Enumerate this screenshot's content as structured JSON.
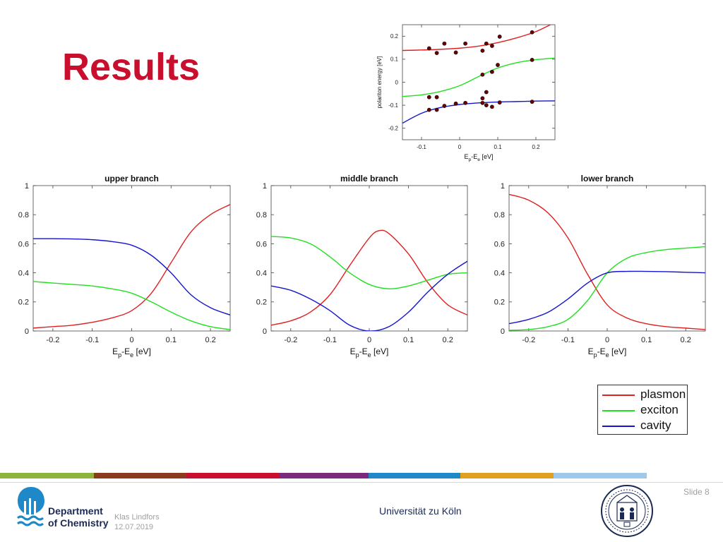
{
  "slide": {
    "title": "Results",
    "slide_number": "Slide 8",
    "author": "Klas Lindfors",
    "date": "12.07.2019",
    "university": "Universität zu Köln",
    "department_line1": "Department",
    "department_line2": "of Chemistry"
  },
  "colors": {
    "title": "#c8102e",
    "plasmon": "#e02020",
    "exciton": "#20e020",
    "cavity": "#1515d0",
    "data_points": "#6b0000",
    "department": "#1a2a55",
    "logo": "#1e88c8",
    "color_bar": [
      "#8db43a",
      "#8b3a1e",
      "#c8102e",
      "#7a2a7a",
      "#1e88c8",
      "#e0a020",
      "#a0c8e8"
    ]
  },
  "legend": {
    "entries": [
      {
        "label": "plasmon",
        "color": "#e02020"
      },
      {
        "label": "exciton",
        "color": "#20e020"
      },
      {
        "label": "cavity",
        "color": "#1515d0"
      }
    ]
  },
  "chart_data": [
    {
      "id": "dispersion",
      "type": "scatter",
      "xlabel_main": "E",
      "xlabel_sub1": "p",
      "xlabel_mid": "-E",
      "xlabel_sub2": "e",
      "xlabel_unit": " [eV]",
      "ylabel": "polariton energy [eV]",
      "xlim": [
        -0.15,
        0.25
      ],
      "ylim": [
        -0.25,
        0.25
      ],
      "x_ticks": [
        -0.1,
        0,
        0.1,
        0.2
      ],
      "x_tick_labels": [
        "-0.1",
        "0",
        "0.1",
        "0.2"
      ],
      "y_ticks": [
        -0.2,
        -0.1,
        0,
        0.1,
        0.2
      ],
      "y_tick_labels": [
        "-0.2",
        "-0.1",
        "0",
        "0.1",
        "0.2"
      ],
      "grid": false,
      "points": [
        {
          "x": -0.08,
          "y": 0.147
        },
        {
          "x": -0.06,
          "y": 0.127
        },
        {
          "x": -0.04,
          "y": 0.168
        },
        {
          "x": -0.01,
          "y": 0.129
        },
        {
          "x": 0.015,
          "y": 0.168
        },
        {
          "x": 0.06,
          "y": 0.137
        },
        {
          "x": 0.07,
          "y": 0.168
        },
        {
          "x": 0.085,
          "y": 0.158
        },
        {
          "x": 0.105,
          "y": 0.198
        },
        {
          "x": 0.19,
          "y": 0.217
        },
        {
          "x": 0.06,
          "y": 0.033
        },
        {
          "x": 0.085,
          "y": 0.045
        },
        {
          "x": 0.1,
          "y": 0.075
        },
        {
          "x": 0.19,
          "y": 0.097
        },
        {
          "x": -0.08,
          "y": -0.065
        },
        {
          "x": -0.06,
          "y": -0.065
        },
        {
          "x": 0.06,
          "y": -0.07
        },
        {
          "x": 0.07,
          "y": -0.043
        },
        {
          "x": -0.08,
          "y": -0.12
        },
        {
          "x": -0.06,
          "y": -0.12
        },
        {
          "x": -0.04,
          "y": -0.103
        },
        {
          "x": -0.01,
          "y": -0.093
        },
        {
          "x": 0.015,
          "y": -0.09
        },
        {
          "x": 0.06,
          "y": -0.09
        },
        {
          "x": 0.07,
          "y": -0.1
        },
        {
          "x": 0.085,
          "y": -0.107
        },
        {
          "x": 0.105,
          "y": -0.088
        },
        {
          "x": 0.19,
          "y": -0.085
        }
      ],
      "series": [
        {
          "color": "#e02020",
          "x": [
            -0.15,
            -0.1,
            -0.05,
            0,
            0.05,
            0.1,
            0.15,
            0.2,
            0.25
          ],
          "y": [
            0.138,
            0.14,
            0.143,
            0.148,
            0.157,
            0.172,
            0.193,
            0.22,
            0.26
          ]
        },
        {
          "color": "#20e020",
          "x": [
            -0.15,
            -0.1,
            -0.05,
            0,
            0.05,
            0.1,
            0.15,
            0.2,
            0.25
          ],
          "y": [
            -0.062,
            -0.055,
            -0.04,
            -0.015,
            0.025,
            0.062,
            0.085,
            0.098,
            0.105
          ]
        },
        {
          "color": "#1515d0",
          "x": [
            -0.15,
            -0.1,
            -0.05,
            0,
            0.05,
            0.1,
            0.15,
            0.2,
            0.25
          ],
          "y": [
            -0.178,
            -0.135,
            -0.11,
            -0.097,
            -0.09,
            -0.086,
            -0.084,
            -0.082,
            -0.081
          ]
        }
      ]
    },
    {
      "id": "upper",
      "type": "line",
      "title": "upper branch",
      "xlabel_main": "E",
      "xlabel_sub1": "p",
      "xlabel_mid": "-E",
      "xlabel_sub2": "e",
      "xlabel_unit": " [eV]",
      "xlim": [
        -0.25,
        0.25
      ],
      "ylim": [
        0,
        1
      ],
      "x_ticks": [
        -0.2,
        -0.1,
        0,
        0.1,
        0.2
      ],
      "x_tick_labels": [
        "-0.2",
        "-0.1",
        "0",
        "0.1",
        "0.2"
      ],
      "y_ticks": [
        0,
        0.2,
        0.4,
        0.6,
        0.8,
        1
      ],
      "y_tick_labels": [
        "0",
        "0.2",
        "0.4",
        "0.6",
        "0.8",
        "1"
      ],
      "grid": false,
      "series": [
        {
          "color": "#e02020",
          "x": [
            -0.25,
            -0.2,
            -0.15,
            -0.1,
            -0.05,
            0,
            0.05,
            0.1,
            0.15,
            0.2,
            0.25
          ],
          "y": [
            0.02,
            0.03,
            0.04,
            0.06,
            0.09,
            0.14,
            0.26,
            0.47,
            0.68,
            0.8,
            0.87
          ]
        },
        {
          "color": "#20e020",
          "x": [
            -0.25,
            -0.2,
            -0.15,
            -0.1,
            -0.05,
            0,
            0.05,
            0.1,
            0.15,
            0.2,
            0.25
          ],
          "y": [
            0.34,
            0.33,
            0.32,
            0.31,
            0.29,
            0.26,
            0.2,
            0.13,
            0.07,
            0.03,
            0.01
          ]
        },
        {
          "color": "#1515d0",
          "x": [
            -0.25,
            -0.2,
            -0.15,
            -0.1,
            -0.05,
            0,
            0.05,
            0.1,
            0.15,
            0.2,
            0.25
          ],
          "y": [
            0.635,
            0.635,
            0.633,
            0.628,
            0.615,
            0.59,
            0.52,
            0.4,
            0.25,
            0.16,
            0.11
          ]
        }
      ]
    },
    {
      "id": "middle",
      "type": "line",
      "title": "middle branch",
      "xlabel_main": "E",
      "xlabel_sub1": "p",
      "xlabel_mid": "-E",
      "xlabel_sub2": "e",
      "xlabel_unit": " [eV]",
      "xlim": [
        -0.25,
        0.25
      ],
      "ylim": [
        0,
        1
      ],
      "x_ticks": [
        -0.2,
        -0.1,
        0,
        0.1,
        0.2
      ],
      "x_tick_labels": [
        "-0.2",
        "-0.1",
        "0",
        "0.1",
        "0.2"
      ],
      "y_ticks": [
        0,
        0.2,
        0.4,
        0.6,
        0.8,
        1
      ],
      "y_tick_labels": [
        "0",
        "0.2",
        "0.4",
        "0.6",
        "0.8",
        "1"
      ],
      "grid": false,
      "series": [
        {
          "color": "#e02020",
          "x": [
            -0.25,
            -0.2,
            -0.15,
            -0.1,
            -0.05,
            0,
            0.025,
            0.05,
            0.1,
            0.15,
            0.2,
            0.25
          ],
          "y": [
            0.04,
            0.07,
            0.13,
            0.25,
            0.45,
            0.64,
            0.69,
            0.67,
            0.53,
            0.33,
            0.18,
            0.11
          ]
        },
        {
          "color": "#20e020",
          "x": [
            -0.25,
            -0.2,
            -0.15,
            -0.1,
            -0.05,
            0,
            0.05,
            0.1,
            0.15,
            0.2,
            0.25
          ],
          "y": [
            0.65,
            0.64,
            0.6,
            0.51,
            0.4,
            0.32,
            0.29,
            0.31,
            0.35,
            0.39,
            0.4
          ]
        },
        {
          "color": "#1515d0",
          "x": [
            -0.25,
            -0.2,
            -0.15,
            -0.1,
            -0.05,
            0,
            0.05,
            0.1,
            0.15,
            0.2,
            0.25
          ],
          "y": [
            0.31,
            0.28,
            0.22,
            0.14,
            0.04,
            0.0,
            0.03,
            0.13,
            0.27,
            0.39,
            0.48
          ]
        }
      ]
    },
    {
      "id": "lower",
      "type": "line",
      "title": "lower branch",
      "xlabel_main": "E",
      "xlabel_sub1": "p",
      "xlabel_mid": "-E",
      "xlabel_sub2": "e",
      "xlabel_unit": " [eV]",
      "xlim": [
        -0.25,
        0.25
      ],
      "ylim": [
        0,
        1
      ],
      "x_ticks": [
        -0.2,
        -0.1,
        0,
        0.1,
        0.2
      ],
      "x_tick_labels": [
        "-0.2",
        "-0.1",
        "0",
        "0.1",
        "0.2"
      ],
      "y_ticks": [
        0,
        0.2,
        0.4,
        0.6,
        0.8,
        1
      ],
      "y_tick_labels": [
        "0",
        "0.2",
        "0.4",
        "0.6",
        "0.8",
        "1"
      ],
      "grid": false,
      "series": [
        {
          "color": "#e02020",
          "x": [
            -0.25,
            -0.2,
            -0.15,
            -0.1,
            -0.05,
            0,
            0.05,
            0.1,
            0.15,
            0.2,
            0.25
          ],
          "y": [
            0.94,
            0.9,
            0.81,
            0.64,
            0.39,
            0.18,
            0.09,
            0.05,
            0.03,
            0.02,
            0.01
          ]
        },
        {
          "color": "#20e020",
          "x": [
            -0.25,
            -0.2,
            -0.15,
            -0.1,
            -0.05,
            0,
            0.05,
            0.1,
            0.15,
            0.2,
            0.25
          ],
          "y": [
            0.005,
            0.01,
            0.03,
            0.08,
            0.21,
            0.4,
            0.5,
            0.54,
            0.56,
            0.57,
            0.58
          ]
        },
        {
          "color": "#1515d0",
          "x": [
            -0.25,
            -0.2,
            -0.15,
            -0.1,
            -0.05,
            0,
            0.05,
            0.1,
            0.15,
            0.2,
            0.25
          ],
          "y": [
            0.05,
            0.08,
            0.13,
            0.22,
            0.33,
            0.4,
            0.41,
            0.41,
            0.408,
            0.404,
            0.4
          ]
        }
      ]
    }
  ]
}
